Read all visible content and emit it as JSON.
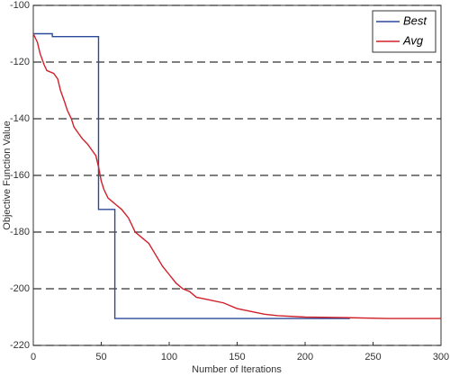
{
  "chart_data": {
    "type": "line",
    "xlabel": "Number of Iterations",
    "ylabel": "Objective Function Value",
    "xlim": [
      0,
      300
    ],
    "xticks": [
      0,
      50,
      100,
      150,
      200,
      250,
      300
    ],
    "ylim": [
      -220,
      -100
    ],
    "yticks": [
      -220,
      -200,
      -180,
      -160,
      -140,
      -120,
      -100
    ],
    "grid": true,
    "legend": "upper right",
    "series": [
      {
        "name": "Best",
        "color": "#2b4a9a",
        "x": [
          0,
          14,
          14,
          48,
          48,
          60,
          60,
          233
        ],
        "values": [
          -110,
          -110,
          -111,
          -111,
          -172,
          -172,
          -210.5,
          -210.5
        ]
      },
      {
        "name": "Avg",
        "color": "#d0202a",
        "x": [
          0,
          3,
          5,
          8,
          10,
          15,
          18,
          20,
          23,
          25,
          28,
          30,
          33,
          36,
          40,
          43,
          46,
          48,
          50,
          52,
          55,
          60,
          65,
          70,
          75,
          80,
          85,
          90,
          95,
          100,
          105,
          110,
          115,
          120,
          130,
          140,
          150,
          160,
          170,
          180,
          200,
          230,
          260,
          300
        ],
        "values": [
          -110,
          -113,
          -117,
          -121,
          -123,
          -124,
          -126,
          -130,
          -134,
          -137,
          -140,
          -143,
          -145,
          -147,
          -149,
          -151,
          -153,
          -157,
          -162,
          -165,
          -168,
          -170,
          -172,
          -175,
          -180,
          -182,
          -184,
          -188,
          -192,
          -195,
          -198,
          -200,
          -201,
          -203,
          -204,
          -205,
          -207,
          -208,
          -209,
          -209.5,
          -210,
          -210.2,
          -210.5,
          -210.5
        ]
      }
    ]
  }
}
